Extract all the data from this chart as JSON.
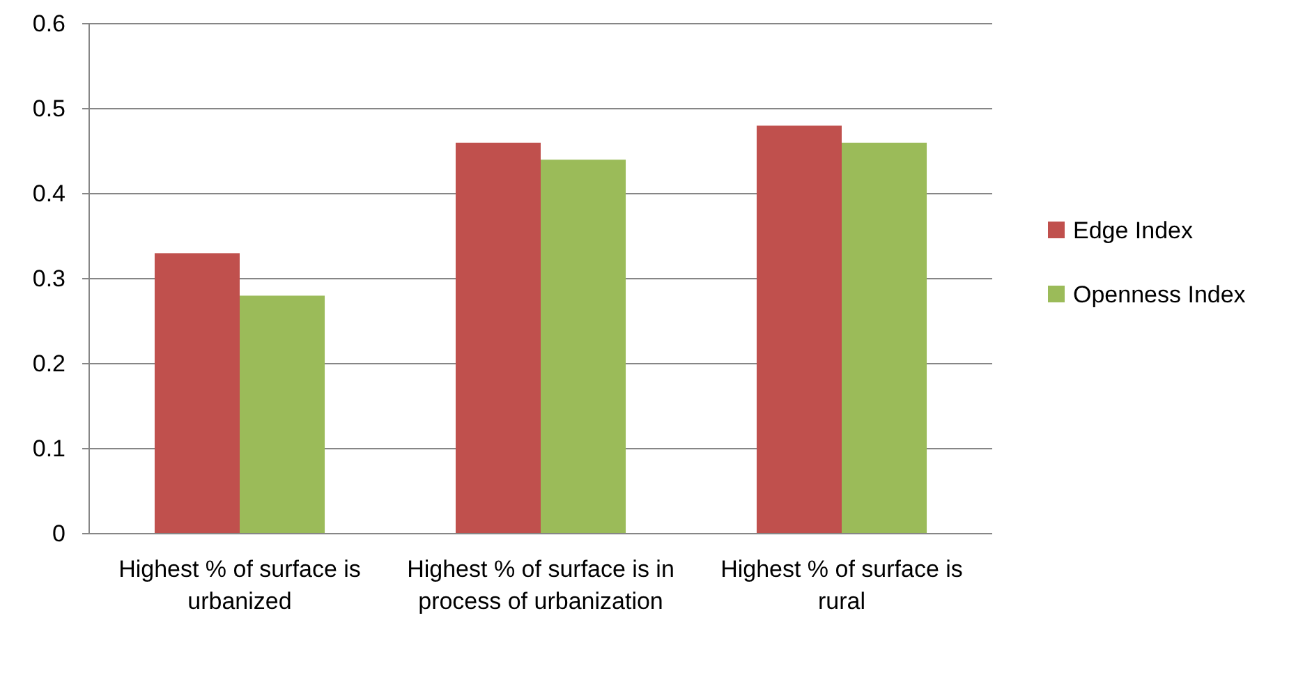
{
  "chart_data": {
    "type": "bar",
    "categories": [
      "Highest % of surface is urbanized",
      "Highest % of surface is in process of urbanization",
      "Highest % of surface is rural"
    ],
    "series": [
      {
        "name": "Edge Index",
        "color": "#c0504d",
        "values": [
          0.33,
          0.46,
          0.48
        ]
      },
      {
        "name": "Openness Index",
        "color": "#9bbb59",
        "values": [
          0.28,
          0.44,
          0.46
        ]
      }
    ],
    "ylim": [
      0,
      0.6
    ],
    "yticks": [
      0,
      0.1,
      0.2,
      0.3,
      0.4,
      0.5,
      0.6
    ],
    "grid": "y",
    "legend": "right"
  }
}
